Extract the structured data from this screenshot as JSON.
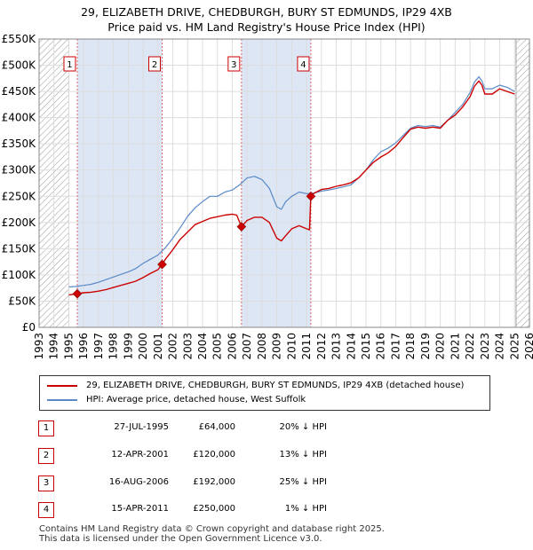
{
  "header": {
    "title_line1": "29, ELIZABETH DRIVE, CHEDBURGH, BURY ST EDMUNDS, IP29 4XB",
    "title_line2": "Price paid vs. HM Land Registry's House Price Index (HPI)"
  },
  "colors": {
    "property": "#cc0000",
    "hpi": "#5a8ac6",
    "sale_shade": "#dce6f5",
    "marker_border": "#cc0000"
  },
  "chart_data": {
    "type": "line",
    "title": "29, ELIZABETH DRIVE, CHEDBURGH, BURY ST EDMUNDS, IP29 4XB - Price paid vs. HM Land Registry's House Price Index (HPI)",
    "xlabel": "",
    "ylabel": "",
    "xlim": [
      1993,
      2026
    ],
    "ylim": [
      0,
      550000
    ],
    "x_ticks": [
      1993,
      1994,
      1995,
      1996,
      1997,
      1998,
      1999,
      2000,
      2001,
      2002,
      2003,
      2004,
      2005,
      2006,
      2007,
      2008,
      2009,
      2010,
      2011,
      2012,
      2013,
      2014,
      2015,
      2016,
      2017,
      2018,
      2019,
      2020,
      2021,
      2022,
      2023,
      2024,
      2025,
      2026
    ],
    "y_ticks": [
      0,
      50000,
      100000,
      150000,
      200000,
      250000,
      300000,
      350000,
      400000,
      450000,
      500000,
      550000
    ],
    "y_tick_labels": [
      "£0",
      "£50K",
      "£100K",
      "£150K",
      "£200K",
      "£250K",
      "£300K",
      "£350K",
      "£400K",
      "£450K",
      "£500K",
      "£550K"
    ],
    "grid": true,
    "hatched_ranges": [
      [
        1993,
        1995.0
      ],
      [
        2025.1,
        2026
      ]
    ],
    "series": [
      {
        "name": "29, ELIZABETH DRIVE, CHEDBURGH, BURY ST EDMUNDS, IP29 4XB (detached house)",
        "color": "#cc0000",
        "x": [
          1995.0,
          1995.57,
          1996.0,
          1996.5,
          1997.0,
          1997.5,
          1998.0,
          1998.5,
          1999.0,
          1999.5,
          2000.0,
          2000.5,
          2001.0,
          2001.28,
          2001.5,
          2002.0,
          2002.5,
          2003.0,
          2003.5,
          2004.0,
          2004.5,
          2005.0,
          2005.5,
          2006.0,
          2006.3,
          2006.62,
          2007.0,
          2007.5,
          2008.0,
          2008.5,
          2009.0,
          2009.3,
          2009.6,
          2010.0,
          2010.5,
          2011.0,
          2011.2,
          2011.29,
          2011.5,
          2012.0,
          2012.5,
          2013.0,
          2013.5,
          2014.0,
          2014.5,
          2015.0,
          2015.5,
          2016.0,
          2016.5,
          2017.0,
          2017.5,
          2018.0,
          2018.5,
          2019.0,
          2019.5,
          2020.0,
          2020.5,
          2021.0,
          2021.5,
          2022.0,
          2022.3,
          2022.6,
          2022.8,
          2023.0,
          2023.5,
          2024.0,
          2024.5,
          2025.0
        ],
        "values": [
          62000,
          64000,
          66000,
          67000,
          69000,
          72000,
          76000,
          80000,
          84000,
          88000,
          95000,
          103000,
          110000,
          120000,
          130000,
          148000,
          168000,
          182000,
          196000,
          202000,
          208000,
          211000,
          214000,
          216000,
          214000,
          192000,
          204000,
          210000,
          210000,
          200000,
          170000,
          165000,
          175000,
          188000,
          194000,
          188000,
          186000,
          250000,
          256000,
          263000,
          265000,
          269000,
          272000,
          276000,
          285000,
          300000,
          315000,
          325000,
          333000,
          345000,
          362000,
          378000,
          382000,
          380000,
          382000,
          380000,
          395000,
          405000,
          420000,
          440000,
          460000,
          470000,
          462000,
          445000,
          445000,
          455000,
          450000,
          445000
        ]
      },
      {
        "name": "HPI: Average price, detached house, West Suffolk",
        "color": "#5a8ac6",
        "x": [
          1995.0,
          1995.5,
          1996.0,
          1996.5,
          1997.0,
          1997.5,
          1998.0,
          1998.5,
          1999.0,
          1999.5,
          2000.0,
          2000.5,
          2001.0,
          2001.5,
          2002.0,
          2002.5,
          2003.0,
          2003.5,
          2004.0,
          2004.5,
          2005.0,
          2005.5,
          2006.0,
          2006.5,
          2007.0,
          2007.5,
          2008.0,
          2008.5,
          2009.0,
          2009.3,
          2009.6,
          2010.0,
          2010.5,
          2011.0,
          2011.5,
          2012.0,
          2012.5,
          2013.0,
          2013.5,
          2014.0,
          2014.5,
          2015.0,
          2015.5,
          2016.0,
          2016.5,
          2017.0,
          2017.5,
          2018.0,
          2018.5,
          2019.0,
          2019.5,
          2020.0,
          2020.5,
          2021.0,
          2021.5,
          2022.0,
          2022.3,
          2022.6,
          2022.8,
          2023.0,
          2023.5,
          2024.0,
          2024.5,
          2025.0
        ],
        "values": [
          77000,
          78000,
          80000,
          82000,
          86000,
          91000,
          96000,
          101000,
          106000,
          112000,
          122000,
          130000,
          138000,
          152000,
          170000,
          190000,
          212000,
          228000,
          240000,
          250000,
          250000,
          258000,
          262000,
          272000,
          285000,
          288000,
          282000,
          265000,
          230000,
          225000,
          240000,
          250000,
          258000,
          255000,
          256000,
          260000,
          262000,
          265000,
          268000,
          272000,
          285000,
          300000,
          320000,
          335000,
          342000,
          352000,
          366000,
          380000,
          385000,
          383000,
          385000,
          382000,
          395000,
          410000,
          425000,
          448000,
          468000,
          478000,
          470000,
          455000,
          455000,
          462000,
          458000,
          450000
        ]
      }
    ],
    "sales": [
      {
        "num": "1",
        "x": 1995.57,
        "value": 64000
      },
      {
        "num": "2",
        "x": 2001.28,
        "value": 120000
      },
      {
        "num": "3",
        "x": 2006.62,
        "value": 192000
      },
      {
        "num": "4",
        "x": 2011.29,
        "value": 250000
      }
    ]
  },
  "legend": {
    "property_label": "29, ELIZABETH DRIVE, CHEDBURGH, BURY ST EDMUNDS, IP29 4XB (detached house)",
    "hpi_label": "HPI: Average price, detached house, West Suffolk"
  },
  "sales_table": [
    {
      "num": "1",
      "date": "27-JUL-1995",
      "price": "£64,000",
      "hpi": "20% ↓ HPI"
    },
    {
      "num": "2",
      "date": "12-APR-2001",
      "price": "£120,000",
      "hpi": "13% ↓ HPI"
    },
    {
      "num": "3",
      "date": "16-AUG-2006",
      "price": "£192,000",
      "hpi": "25% ↓ HPI"
    },
    {
      "num": "4",
      "date": "15-APR-2011",
      "price": "£250,000",
      "hpi": "1% ↓ HPI"
    }
  ],
  "footer": {
    "line1": "Contains HM Land Registry data © Crown copyright and database right 2025.",
    "line2": "This data is licensed under the Open Government Licence v3.0."
  }
}
